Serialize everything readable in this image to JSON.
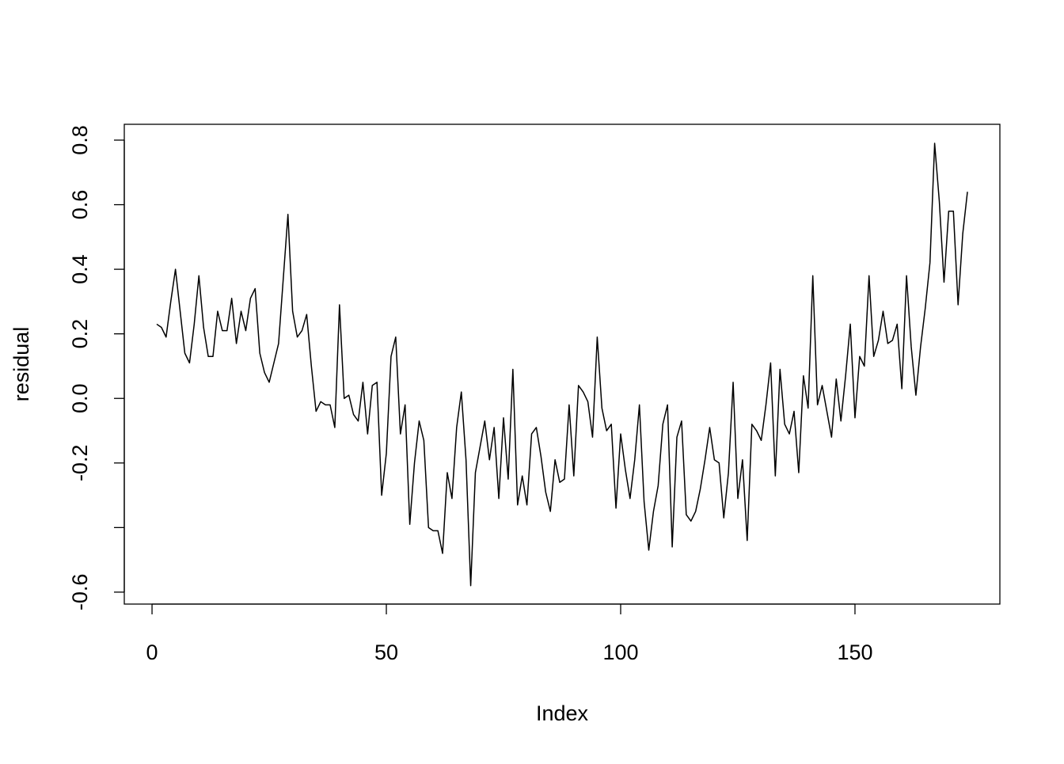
{
  "chart_data": {
    "type": "line",
    "x_label": "Index",
    "y_label": "residual",
    "x": [
      1,
      2,
      3,
      4,
      5,
      6,
      7,
      8,
      9,
      10,
      11,
      12,
      13,
      14,
      15,
      16,
      17,
      18,
      19,
      20,
      21,
      22,
      23,
      24,
      25,
      26,
      27,
      28,
      29,
      30,
      31,
      32,
      33,
      34,
      35,
      36,
      37,
      38,
      39,
      40,
      41,
      42,
      43,
      44,
      45,
      46,
      47,
      48,
      49,
      50,
      51,
      52,
      53,
      54,
      55,
      56,
      57,
      58,
      59,
      60,
      61,
      62,
      63,
      64,
      65,
      66,
      67,
      68,
      69,
      70,
      71,
      72,
      73,
      74,
      75,
      76,
      77,
      78,
      79,
      80,
      81,
      82,
      83,
      84,
      85,
      86,
      87,
      88,
      89,
      90,
      91,
      92,
      93,
      94,
      95,
      96,
      97,
      98,
      99,
      100,
      101,
      102,
      103,
      104,
      105,
      106,
      107,
      108,
      109,
      110,
      111,
      112,
      113,
      114,
      115,
      116,
      117,
      118,
      119,
      120,
      121,
      122,
      123,
      124,
      125,
      126,
      127,
      128,
      129,
      130,
      131,
      132,
      133,
      134,
      135,
      136,
      137,
      138,
      139,
      140,
      141,
      142,
      143,
      144,
      145,
      146,
      147,
      148,
      149,
      150,
      151,
      152,
      153,
      154,
      155,
      156,
      157,
      158,
      159,
      160,
      161,
      162,
      163,
      164,
      165,
      166,
      167,
      168,
      169,
      170,
      171,
      172,
      173,
      174
    ],
    "values": [
      0.23,
      0.22,
      0.19,
      0.3,
      0.4,
      0.27,
      0.14,
      0.11,
      0.23,
      0.38,
      0.22,
      0.13,
      0.13,
      0.27,
      0.21,
      0.21,
      0.31,
      0.17,
      0.27,
      0.21,
      0.31,
      0.34,
      0.14,
      0.08,
      0.05,
      0.11,
      0.17,
      0.37,
      0.57,
      0.27,
      0.19,
      0.21,
      0.26,
      0.1,
      -0.04,
      -0.01,
      -0.02,
      -0.02,
      -0.09,
      0.29,
      0.0,
      0.01,
      -0.05,
      -0.07,
      0.05,
      -0.11,
      0.04,
      0.05,
      -0.3,
      -0.17,
      0.13,
      0.19,
      -0.11,
      -0.02,
      -0.39,
      -0.2,
      -0.07,
      -0.13,
      -0.4,
      -0.41,
      -0.41,
      -0.48,
      -0.23,
      -0.31,
      -0.09,
      0.02,
      -0.19,
      -0.58,
      -0.23,
      -0.15,
      -0.07,
      -0.19,
      -0.09,
      -0.31,
      -0.06,
      -0.25,
      0.09,
      -0.33,
      -0.24,
      -0.33,
      -0.11,
      -0.09,
      -0.18,
      -0.29,
      -0.35,
      -0.19,
      -0.26,
      -0.25,
      -0.02,
      -0.24,
      0.04,
      0.02,
      -0.01,
      -0.12,
      0.19,
      -0.03,
      -0.1,
      -0.08,
      -0.34,
      -0.11,
      -0.22,
      -0.31,
      -0.19,
      -0.02,
      -0.32,
      -0.47,
      -0.35,
      -0.27,
      -0.08,
      -0.02,
      -0.46,
      -0.12,
      -0.07,
      -0.36,
      -0.38,
      -0.35,
      -0.28,
      -0.19,
      -0.09,
      -0.19,
      -0.2,
      -0.37,
      -0.23,
      0.05,
      -0.31,
      -0.19,
      -0.44,
      -0.08,
      -0.1,
      -0.13,
      -0.02,
      0.11,
      -0.24,
      0.09,
      -0.08,
      -0.11,
      -0.04,
      -0.23,
      0.07,
      -0.03,
      0.38,
      -0.02,
      0.04,
      -0.04,
      -0.12,
      0.06,
      -0.07,
      0.07,
      0.23,
      -0.06,
      0.13,
      0.1,
      0.38,
      0.13,
      0.18,
      0.27,
      0.17,
      0.18,
      0.23,
      0.03,
      0.38,
      0.16,
      0.01,
      0.16,
      0.28,
      0.42,
      0.79,
      0.61,
      0.36,
      0.58,
      0.58,
      0.29,
      0.51,
      0.64
    ],
    "color": "#000000",
    "xlim": [
      -5.92,
      180.92
    ],
    "xticks": [
      0,
      50,
      100,
      150
    ],
    "ylim": [
      -0.637,
      0.849
    ],
    "yticks": [
      {
        "value": -0.6,
        "label": "-0.6"
      },
      {
        "value": -0.4,
        "label": null
      },
      {
        "value": -0.2,
        "label": "-0.2"
      },
      {
        "value": 0,
        "label": "0.0"
      },
      {
        "value": 0.2,
        "label": "0.2"
      },
      {
        "value": 0.4,
        "label": "0.4"
      },
      {
        "value": 0.6,
        "label": "0.6"
      },
      {
        "value": 0.8,
        "label": "0.8"
      }
    ]
  }
}
